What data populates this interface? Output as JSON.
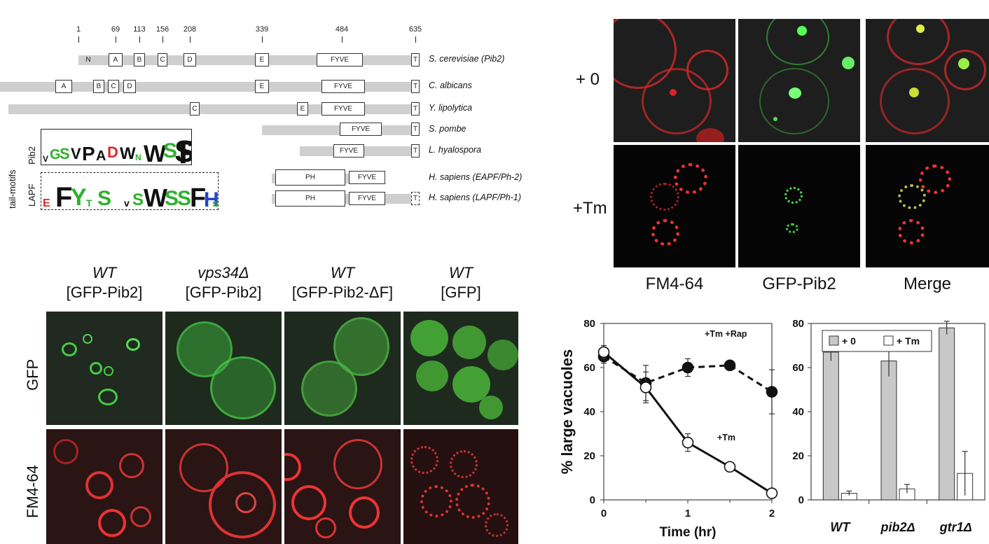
{
  "domainDiagram": {
    "ticks": [
      "1",
      "69",
      "113",
      "156",
      "208",
      "339",
      "484",
      "635"
    ],
    "species": [
      "S. cerevisiae (Pib2)",
      "C. albicans",
      "Y. lipolytica",
      "S. pombe",
      "L. hyalospora",
      "H. sapiens (EAPF/Ph-2)",
      "H. sapiens (LAPF/Ph-1)"
    ],
    "domains": {
      "N": "N",
      "A": "A",
      "B": "B",
      "C": "C",
      "D": "D",
      "E": "E",
      "FYVE": "FYVE",
      "T": "T",
      "PH": "PH"
    },
    "motifLabels": {
      "group": "tail-motifs",
      "pib2": "Pib2",
      "lapf": "LAPF"
    },
    "motifLogos": {
      "pib2": "VGSVPADWNWSSF",
      "lapf": "EFYTS vSWSSFHs"
    }
  },
  "confocalTop": {
    "rows": [
      "+ 0",
      "+Tm"
    ],
    "columns": [
      "FM4-64",
      "GFP-Pib2",
      "Merge"
    ]
  },
  "confocalBottom": {
    "columns": [
      {
        "strain": "WT",
        "construct": "[GFP-Pib2]"
      },
      {
        "strain": "vps34Δ",
        "construct": "[GFP-Pib2]"
      },
      {
        "strain": "WT",
        "construct": "[GFP-Pib2-ΔF]"
      },
      {
        "strain": "WT",
        "construct": "[GFP]"
      }
    ],
    "rows": [
      "GFP",
      "FM4-64"
    ]
  },
  "colors": {
    "fm4_64": "#e0262b",
    "gfp": "#3ecf3e",
    "merge": "#c9d236",
    "barGray": "#cfcfcf"
  },
  "chart_data": [
    {
      "type": "line",
      "xlabel": "Time (hr)",
      "ylabel": "% large vacuoles",
      "xlim": [
        0,
        2
      ],
      "ylim": [
        0,
        80
      ],
      "xticks": [
        "0",
        "1",
        "2"
      ],
      "yticks": [
        "0",
        "20",
        "40",
        "60",
        "80"
      ],
      "series": [
        {
          "name": "+Tm +Rap",
          "style": "dashed",
          "marker": "filled-circle",
          "x": [
            0,
            0.5,
            1,
            1.5,
            2
          ],
          "y": [
            65,
            53,
            60,
            61,
            49
          ],
          "err": [
            3,
            8,
            4,
            2,
            10
          ]
        },
        {
          "name": "+Tm",
          "style": "solid",
          "marker": "open-circle",
          "x": [
            0,
            0.5,
            1,
            1.5,
            2
          ],
          "y": [
            67,
            51,
            26,
            15,
            3
          ],
          "err": [
            3,
            7,
            4,
            2,
            2
          ]
        }
      ]
    },
    {
      "type": "bar",
      "categories": [
        "WT",
        "pib2Δ",
        "gtr1Δ"
      ],
      "ylim": [
        0,
        80
      ],
      "yticks": [
        "0",
        "20",
        "40",
        "60",
        "80"
      ],
      "legend_position": "top",
      "series": [
        {
          "name": "+ 0",
          "color": "#c8c8c8",
          "values": [
            67,
            63,
            78
          ],
          "err": [
            4,
            7,
            3
          ]
        },
        {
          "name": "+ Tm",
          "color": "#ffffff",
          "values": [
            3,
            5,
            12
          ],
          "err": [
            1,
            2,
            10
          ]
        }
      ]
    }
  ]
}
